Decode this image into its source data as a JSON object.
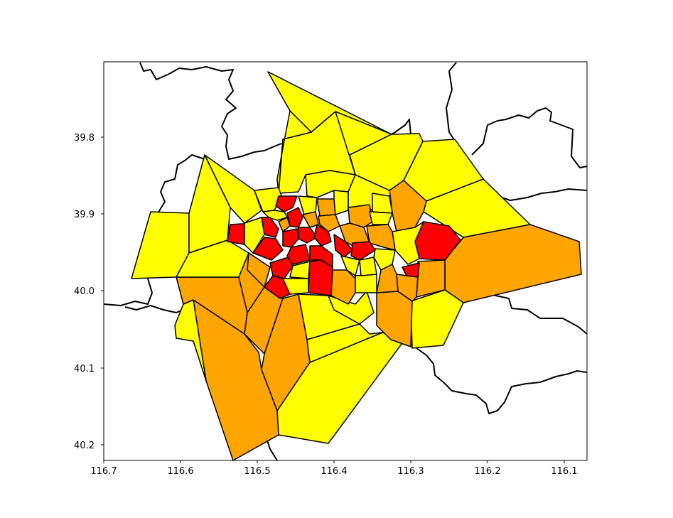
{
  "chart_data": {
    "type": "choropleth map",
    "title": "",
    "xlabel": "",
    "ylabel": "",
    "x_axis": {
      "ticks": [
        "116.7",
        "116.6",
        "116.5",
        "116.4",
        "116.3",
        "116.2",
        "116.1"
      ],
      "inverted": true
    },
    "y_axis": {
      "ticks": [
        "39.8",
        "39.9",
        "40.0",
        "40.1",
        "40.2"
      ],
      "inverted": true
    },
    "legend": "none",
    "grid": false,
    "fill_colors": {
      "low": "#ffff00",
      "medium": "#ffa500",
      "high": "#ff0000"
    },
    "outline_color": "#000000"
  }
}
